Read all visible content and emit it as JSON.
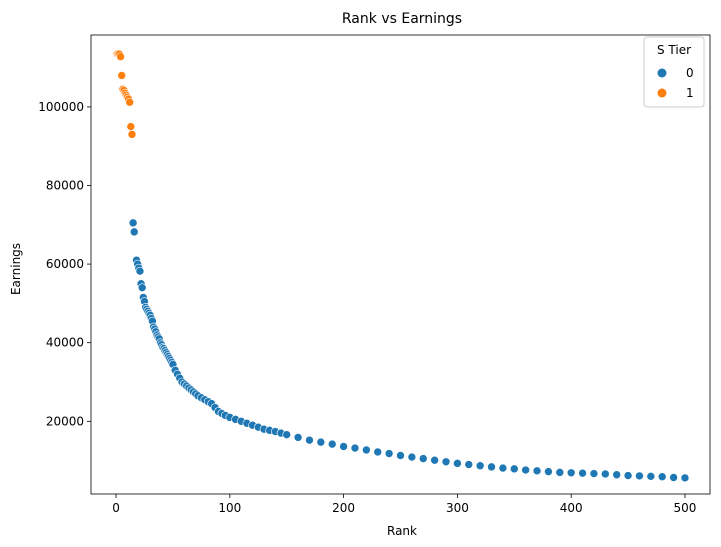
{
  "chart_data": {
    "type": "scatter",
    "title": "Rank vs Earnings",
    "xlabel": "Rank",
    "ylabel": "Earnings",
    "xlim": [
      -22,
      522
    ],
    "ylim": [
      1500,
      118300
    ],
    "xticks": [
      0,
      100,
      200,
      300,
      400,
      500
    ],
    "yticks": [
      20000,
      40000,
      60000,
      80000,
      100000
    ],
    "grid": false,
    "legend": {
      "title": "S Tier",
      "placement": "top-right",
      "entries": [
        {
          "label": "0",
          "color": "#1f77b4"
        },
        {
          "label": "1",
          "color": "#ff7f0e"
        }
      ]
    },
    "series": [
      {
        "name": "1",
        "color": "#ff7f0e",
        "x": [
          1,
          2,
          3,
          4,
          5,
          6,
          7,
          8,
          9,
          10,
          11,
          12,
          13,
          14
        ],
        "y": [
          113500,
          113500,
          113400,
          112800,
          108000,
          104500,
          104200,
          103500,
          103000,
          102500,
          102000,
          101200,
          95000,
          93000
        ]
      },
      {
        "name": "0",
        "color": "#1f77b4",
        "x": [
          15,
          16,
          18,
          19,
          20,
          21,
          22,
          23,
          24,
          25,
          26,
          27,
          28,
          29,
          30,
          31,
          32,
          33,
          34,
          35,
          36,
          37,
          38,
          39,
          40,
          41,
          42,
          43,
          44,
          45,
          46,
          47,
          48,
          49,
          50,
          52,
          54,
          56,
          58,
          60,
          62,
          64,
          66,
          68,
          70,
          72,
          75,
          78,
          81,
          84,
          87,
          90,
          93,
          96,
          100,
          105,
          110,
          115,
          120,
          125,
          130,
          135,
          140,
          145,
          150,
          160,
          170,
          180,
          190,
          200,
          210,
          220,
          230,
          240,
          250,
          260,
          270,
          280,
          290,
          300,
          310,
          320,
          330,
          340,
          350,
          360,
          370,
          380,
          390,
          400,
          410,
          420,
          430,
          440,
          450,
          460,
          470,
          480,
          490,
          500
        ],
        "y": [
          70500,
          68200,
          61000,
          60000,
          59000,
          58200,
          55000,
          54000,
          51500,
          50500,
          49000,
          48500,
          48000,
          47500,
          47000,
          46200,
          45500,
          44000,
          43500,
          42800,
          42000,
          41500,
          41000,
          40000,
          39500,
          38800,
          38500,
          38000,
          37500,
          37000,
          36500,
          36000,
          35500,
          35000,
          34500,
          33000,
          32000,
          31000,
          30000,
          29500,
          29000,
          28500,
          28000,
          27500,
          27000,
          26500,
          26000,
          25500,
          25000,
          24500,
          23500,
          22500,
          22000,
          21500,
          21000,
          20500,
          20000,
          19500,
          19000,
          18500,
          18000,
          17700,
          17400,
          17000,
          16600,
          15900,
          15200,
          14700,
          14200,
          13600,
          13200,
          12700,
          12200,
          11800,
          11300,
          10900,
          10500,
          10100,
          9700,
          9300,
          9000,
          8700,
          8400,
          8100,
          7900,
          7600,
          7400,
          7200,
          7000,
          6900,
          6800,
          6700,
          6600,
          6400,
          6200,
          6100,
          6000,
          5900,
          5700,
          5600
        ]
      }
    ]
  }
}
